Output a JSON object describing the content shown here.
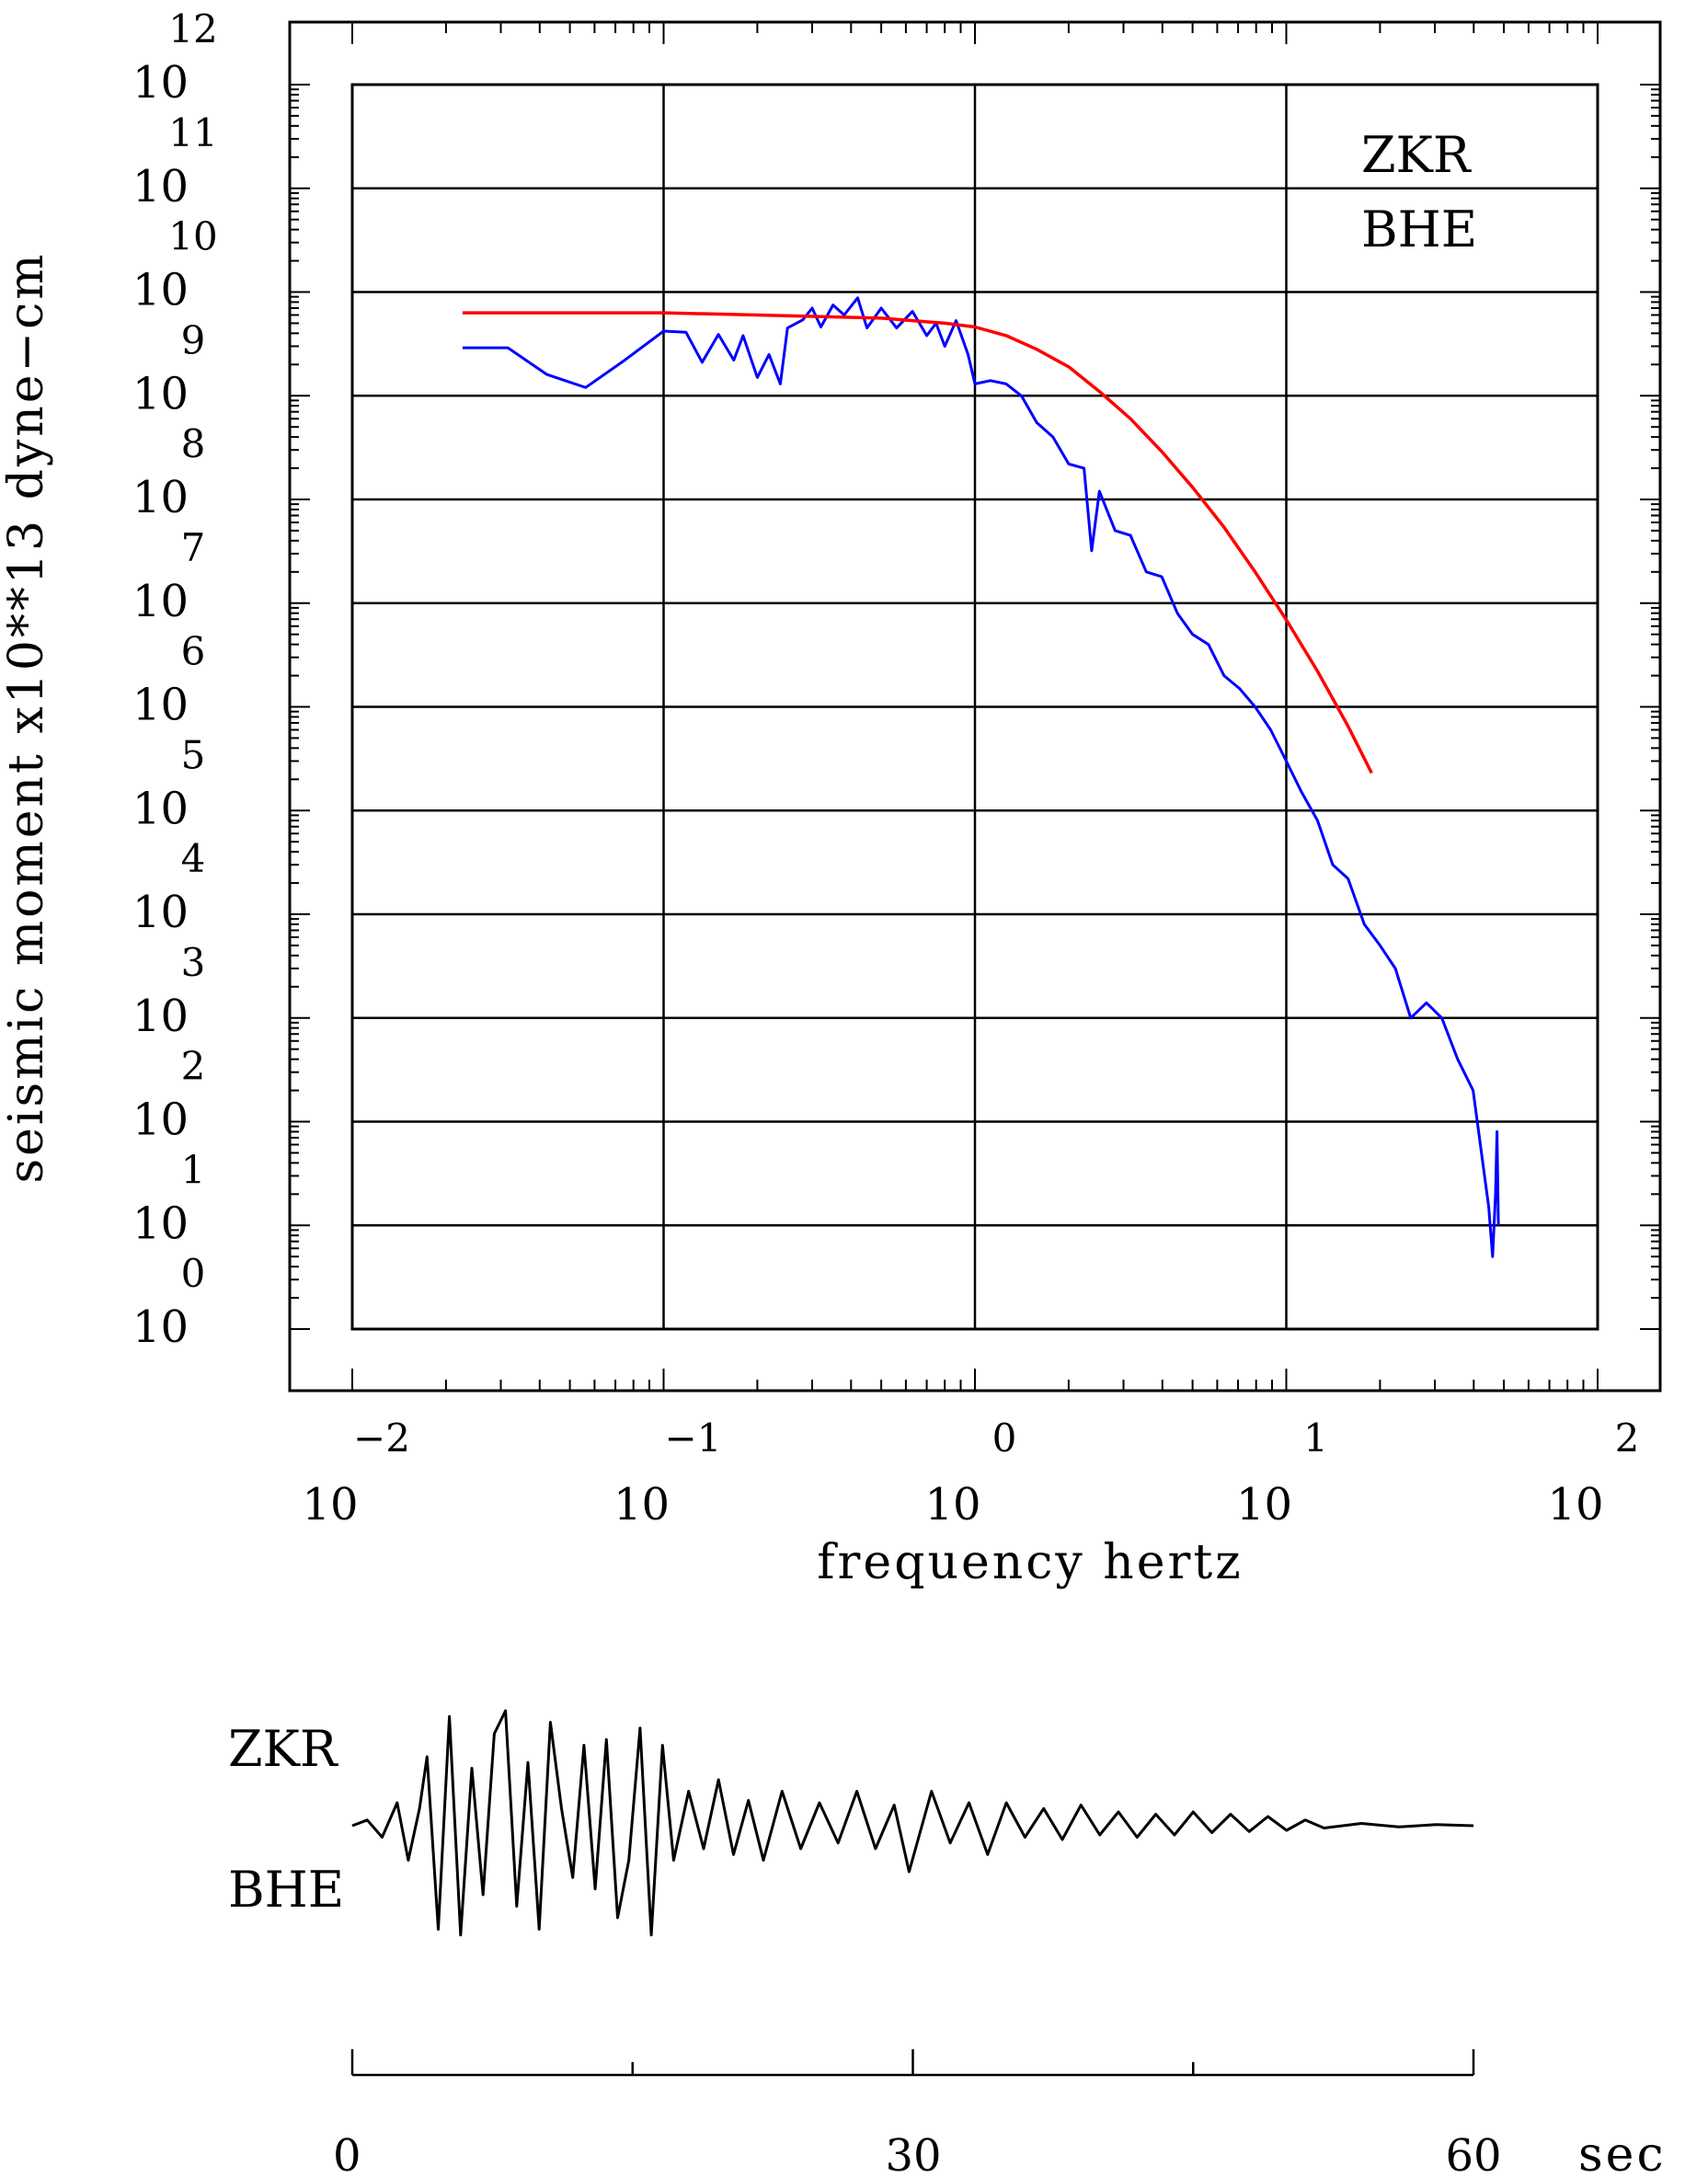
{
  "spectrum_panel": {
    "y_axis_label": "seismic moment x10**13 dyne−cm",
    "x_axis_label": "frequency hertz",
    "station": "ZKR",
    "channel": "BHE"
  },
  "trace_panel": {
    "station": "ZKR",
    "channel": "BHE",
    "time_unit": "sec",
    "time_tick_labels": [
      "0",
      "30",
      "60"
    ]
  },
  "chart_data": [
    {
      "type": "line",
      "title": "",
      "xlabel": "frequency hertz",
      "ylabel": "seismic moment x10**13 dyne−cm",
      "x_scale": "log",
      "y_scale": "log",
      "xlim": [
        0.01,
        100
      ],
      "ylim": [
        1,
        1000000000000
      ],
      "x_tick_labels": [
        {
          "mantissa": "10",
          "exponent": "−2"
        },
        {
          "mantissa": "10",
          "exponent": "−1"
        },
        {
          "mantissa": "10",
          "exponent": "0"
        },
        {
          "mantissa": "10",
          "exponent": "1"
        },
        {
          "mantissa": "10",
          "exponent": "2"
        }
      ],
      "y_tick_labels": [
        {
          "mantissa": "10",
          "exponent": "0"
        },
        {
          "mantissa": "10",
          "exponent": "1"
        },
        {
          "mantissa": "10",
          "exponent": "2"
        },
        {
          "mantissa": "10",
          "exponent": "3"
        },
        {
          "mantissa": "10",
          "exponent": "4"
        },
        {
          "mantissa": "10",
          "exponent": "5"
        },
        {
          "mantissa": "10",
          "exponent": "6"
        },
        {
          "mantissa": "10",
          "exponent": "7"
        },
        {
          "mantissa": "10",
          "exponent": "8"
        },
        {
          "mantissa": "10",
          "exponent": "9"
        },
        {
          "mantissa": "10",
          "exponent": "10"
        },
        {
          "mantissa": "10",
          "exponent": "11"
        },
        {
          "mantissa": "10",
          "exponent": "12"
        }
      ],
      "grid": true,
      "annotations": [
        "ZKR",
        "BHE"
      ],
      "series": [
        {
          "color": "#0000ff",
          "x": [
            0.0226,
            0.0316,
            0.0422,
            0.0562,
            0.075,
            0.1,
            0.118,
            0.133,
            0.15,
            0.168,
            0.18,
            0.2,
            0.218,
            0.237,
            0.25,
            0.267,
            0.28,
            0.3,
            0.32,
            0.35,
            0.38,
            0.42,
            0.45,
            0.5,
            0.56,
            0.63,
            0.7,
            0.75,
            0.8,
            0.87,
            0.95,
            1.0,
            1.12,
            1.26,
            1.41,
            1.58,
            1.78,
            2.0,
            2.24,
            2.37,
            2.51,
            2.82,
            3.16,
            3.55,
            3.98,
            4.47,
            5.0,
            5.62,
            6.31,
            7.08,
            7.94,
            8.91,
            10.0,
            11.2,
            12.6,
            14.1,
            15.8,
            17.8,
            20.0,
            22.4,
            25.1,
            28.2,
            31.6,
            35.5,
            39.8,
            42.0,
            44.7,
            46.0,
            47.0,
            47.5,
            48.0
          ],
          "values": [
            2900000000.0,
            2900000000.0,
            1600000000.0,
            1200000000.0,
            2200000000.0,
            4200000000.0,
            4100000000.0,
            2100000000.0,
            3900000000.0,
            2200000000.0,
            3800000000.0,
            1500000000.0,
            2500000000.0,
            1300000000.0,
            4500000000.0,
            5000000000.0,
            5400000000.0,
            7000000000.0,
            4600000000.0,
            7500000000.0,
            6000000000.0,
            8800000000.0,
            4500000000.0,
            7000000000.0,
            4500000000.0,
            6500000000.0,
            3800000000.0,
            5000000000.0,
            3000000000.0,
            5300000000.0,
            2500000000.0,
            1300000000.0,
            1400000000.0,
            1300000000.0,
            1000000000.0,
            550000000.0,
            400000000.0,
            220000000.0,
            200000000.0,
            32000000.0,
            120000000.0,
            50000000.0,
            45000000.0,
            20000000.0,
            18000000.0,
            8000000.0,
            5000000.0,
            4000000.0,
            2000000.0,
            1500000.0,
            1000000.0,
            600000.0,
            300000.0,
            150000.0,
            80000.0,
            30000.0,
            22000.0,
            8000.0,
            5000.0,
            3000.0,
            1000.0,
            1400.0,
            1000.0,
            400,
            200,
            60,
            15,
            5,
            20,
            80,
            10
          ]
        },
        {
          "color": "#ff0000",
          "x": [
            0.0226,
            0.0316,
            0.05,
            0.1,
            0.2,
            0.5,
            0.8,
            1.0,
            1.26,
            1.58,
            2.0,
            2.51,
            3.16,
            3.98,
            5.01,
            6.31,
            7.94,
            10.0,
            12.6,
            15.8,
            18.8
          ],
          "values": [
            6300000000.0,
            6300000000.0,
            6300000000.0,
            6300000000.0,
            6000000000.0,
            5600000000.0,
            5000000000.0,
            4600000000.0,
            3800000000.0,
            2800000000.0,
            1900000000.0,
            1100000000.0,
            600000000.0,
            290000000.0,
            130000000.0,
            54000000.0,
            20000000.0,
            6900000.0,
            2200000.0,
            650000.0,
            230000.0
          ]
        }
      ]
    },
    {
      "type": "line",
      "title": "",
      "xlabel": "sec",
      "ylabel": "",
      "xlim": [
        0,
        60
      ],
      "x_tick_labels": [
        "0",
        "30",
        "60"
      ],
      "grid": false,
      "annotations": [
        "ZKR",
        "BHE"
      ],
      "series": [
        {
          "color": "#000000",
          "x": [
            0,
            0.8,
            1.6,
            2.4,
            3.0,
            3.6,
            4.0,
            4.6,
            5.2,
            5.8,
            6.4,
            7.0,
            7.6,
            8.2,
            8.8,
            9.4,
            10.0,
            10.6,
            11.2,
            11.8,
            12.4,
            13.0,
            13.6,
            14.2,
            14.8,
            15.4,
            16.0,
            16.6,
            17.2,
            18.0,
            18.8,
            19.6,
            20.4,
            21.2,
            22.0,
            23.0,
            24.0,
            25.0,
            26.0,
            27.0,
            28.0,
            29.0,
            29.8,
            31.0,
            32.0,
            33.0,
            34.0,
            35.0,
            36.0,
            37.0,
            38.0,
            39.0,
            40.0,
            41.0,
            42.0,
            43.0,
            44.0,
            45.0,
            46.0,
            47.0,
            48.0,
            49.0,
            50.0,
            51.0,
            52.0,
            54.0,
            56.0,
            58.0,
            60.0
          ],
          "values": [
            0.0,
            0.05,
            -0.1,
            0.2,
            -0.3,
            0.15,
            0.6,
            -0.9,
            0.95,
            -0.95,
            0.5,
            -0.6,
            0.8,
            1.0,
            -0.7,
            0.55,
            -0.9,
            0.9,
            0.15,
            -0.45,
            0.7,
            -0.55,
            0.75,
            -0.8,
            -0.3,
            0.85,
            -0.95,
            0.7,
            -0.3,
            0.3,
            -0.2,
            0.4,
            -0.25,
            0.22,
            -0.3,
            0.3,
            -0.2,
            0.2,
            -0.15,
            0.3,
            -0.2,
            0.18,
            -0.4,
            0.3,
            -0.15,
            0.2,
            -0.25,
            0.2,
            -0.1,
            0.15,
            -0.12,
            0.18,
            -0.08,
            0.12,
            -0.1,
            0.1,
            -0.08,
            0.12,
            -0.06,
            0.1,
            -0.05,
            0.08,
            -0.04,
            0.05,
            -0.02,
            0.02,
            -0.01,
            0.01,
            0.0
          ]
        }
      ]
    }
  ]
}
